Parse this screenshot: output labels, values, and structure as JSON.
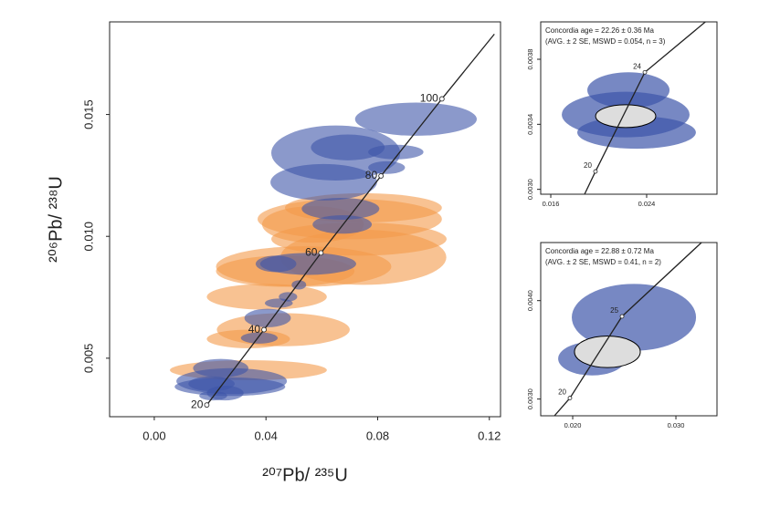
{
  "chart_data": [
    {
      "type": "ellipse",
      "xlabel": "²⁰⁷Pb/ ²³⁵U",
      "ylabel": "²⁰⁶Pb/ ²³⁸U",
      "xlim": [
        -0.016,
        0.124
      ],
      "ylim": [
        0.0026,
        0.0188
      ],
      "xticks": [
        {
          "value": 0,
          "label": "0.00"
        },
        0.04,
        0.08,
        0.12
      ],
      "yticks": [
        0.005,
        {
          "value": 0.01,
          "label": "0.010"
        },
        0.015
      ],
      "series": [
        {
          "color": "#f39a4a",
          "x": [
            0.0337,
            0.0462,
            0.0337,
            0.0403,
            0.0469,
            0.0535,
            0.0749,
            0.0733,
            0.07,
            0.0749,
            0.0568
          ],
          "y": [
            0.00451,
            0.00617,
            0.00579,
            0.00752,
            0.00857,
            0.00876,
            0.00914,
            0.00989,
            0.01071,
            0.01117,
            0.01049
          ],
          "x_err": [
            0.0281,
            0.0238,
            0.0149,
            0.0215,
            0.0248,
            0.0314,
            0.0297,
            0.0314,
            0.033,
            0.0281,
            0.0182
          ],
          "y_err": [
            0.00041,
            0.00068,
            0.00038,
            0.00053,
            0.00064,
            0.00083,
            0.00113,
            0.00068,
            0.00083,
            0.0006,
            0.00075
          ]
        },
        {
          "color": "#3d55a9",
          "x": [
            0.065,
            0.0693,
            0.0607,
            0.0937,
            0.0865,
            0.0832,
            0.0667,
            0.0673,
            0.0551,
            0.0436,
            0.0518,
            0.0479,
            0.0446,
            0.0406,
            0.0376,
            0.0238,
            0.0277,
            0.0205,
            0.0271,
            0.0254,
            0.0211
          ],
          "y": [
            0.01342,
            0.01365,
            0.01222,
            0.01481,
            0.01346,
            0.01282,
            0.01113,
            0.01049,
            0.00887,
            0.00887,
            0.00801,
            0.00752,
            0.00726,
            0.00665,
            0.00583,
            0.00459,
            0.00406,
            0.00395,
            0.00383,
            0.00357,
            0.00346
          ],
          "x_err": [
            0.0231,
            0.0132,
            0.0191,
            0.0218,
            0.0099,
            0.0066,
            0.0139,
            0.0106,
            0.0172,
            0.0073,
            0.0026,
            0.0033,
            0.005,
            0.0083,
            0.0066,
            0.0099,
            0.0198,
            0.0083,
            0.0198,
            0.0066,
            0.005
          ],
          "y_err": [
            0.00113,
            0.00053,
            0.00075,
            0.00068,
            0.0003,
            0.00026,
            0.00045,
            0.00038,
            0.00045,
            0.00034,
            0.00019,
            0.00019,
            0.00019,
            0.00038,
            0.00023,
            0.00038,
            0.00053,
            0.0003,
            0.00038,
            0.0003,
            0.00019
          ]
        }
      ],
      "concordia": {
        "x": [
          0.0188,
          0.0393,
          0.0597,
          0.0812,
          0.103,
          0.1218
        ],
        "y": [
          0.00308,
          0.00617,
          0.00932,
          0.01248,
          0.01564,
          0.0183
        ],
        "ages": [
          20,
          40,
          60,
          80,
          100,
          null
        ]
      }
    },
    {
      "type": "ellipse",
      "annotations": [
        "Concordia age = 22.26 ± 0.36 Ma",
        "(AVG. ± 2 SE, MSWD = 0.054, n = 3)"
      ],
      "xlim": [
        0.01516,
        0.02987
      ],
      "ylim": [
        0.00297,
        0.00403
      ],
      "xticks": [
        0.016,
        0.024
      ],
      "yticks": [
        {
          "value": 0.003,
          "label": "0.0030"
        },
        0.0034,
        0.0038
      ],
      "series": [
        {
          "color": "#3d55a9",
          "x": [
            0.02248,
            0.02225,
            0.02316
          ],
          "y": [
            0.00361,
            0.00346,
            0.00335
          ],
          "x_err": [
            0.00343,
            0.00533,
            0.00495
          ],
          "y_err": [
            0.00011,
            0.00014,
            0.0001
          ]
        },
        {
          "color": "#dddddd",
          "x": [
            0.02225
          ],
          "y": [
            0.00345
          ],
          "x_err": [
            0.00251
          ],
          "y_err": [
            7e-05
          ]
        }
      ],
      "concordia": {
        "x": [
          0.01882,
          0.01973,
          0.02385,
          0.0289
        ],
        "y": [
          0.00297,
          0.00311,
          0.00372,
          0.00403
        ],
        "ages": [
          null,
          20,
          24,
          null
        ]
      }
    },
    {
      "type": "ellipse",
      "annotations": [
        "Concordia age = 22.88 ± 0.72 Ma",
        "(AVG. ± 2 SE, MSWD = 0.41, n = 2)"
      ],
      "xlim": [
        0.0169,
        0.03398
      ],
      "ylim": [
        0.00283,
        0.00459
      ],
      "xticks": [
        {
          "value": 0.02,
          "label": "0.020"
        },
        {
          "value": 0.03,
          "label": "0.030"
        }
      ],
      "yticks": [
        {
          "value": 0.003,
          "label": "0.0030"
        },
        {
          "value": 0.004,
          "label": "0.0040"
        }
      ],
      "series": [
        {
          "color": "#3d55a9",
          "x": [
            0.02593,
            0.02186
          ],
          "y": [
            0.00383,
            0.00341
          ],
          "x_err": [
            0.00602,
            0.00327
          ],
          "y_err": [
            0.00034,
            0.00017
          ]
        },
        {
          "color": "#dddddd",
          "x": [
            0.02336
          ],
          "y": [
            0.00348
          ],
          "x_err": [
            0.00319
          ],
          "y_err": [
            0.00016
          ]
        }
      ],
      "concordia": {
        "x": [
          0.01823,
          0.01973,
          0.02478,
          0.03248
        ],
        "y": [
          0.00283,
          0.00301,
          0.00384,
          0.00459
        ],
        "ages": [
          null,
          20,
          25,
          null
        ]
      }
    }
  ]
}
